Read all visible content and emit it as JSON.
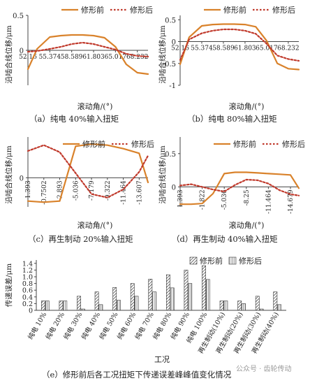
{
  "colors": {
    "before": "#d9822b",
    "after": "#c0392b",
    "axis": "#444444"
  },
  "legend": {
    "before": "修形前",
    "after": "修形后"
  },
  "captions": {
    "a": "（a）纯电 40%输入扭矩",
    "b": "（b）纯电 80%输入扭矩",
    "c": "（c）再生制动 20%输入扭矩",
    "d": "（d）再生制动 40%输入扭矩",
    "e": "（e）修形前后各工况扭矩下传递误差峰峰值变化情况"
  },
  "watermark": "公众号 · 齿轮传动",
  "chart_data": [
    {
      "id": "a",
      "type": "line",
      "ylabel": "沿啮合线位移/μm",
      "xlabel": "滚动角/(°)",
      "ylim": [
        -0.5,
        0.5
      ],
      "yticks": [
        0.5,
        0
      ],
      "xtick_labels": [
        "52.16",
        "55.374",
        "58.589",
        "61.803",
        "65.017",
        "68.232"
      ],
      "x": [
        52.16,
        53.5,
        55.374,
        57.0,
        58.589,
        60.2,
        61.803,
        63.4,
        65.017,
        66.6,
        68.232,
        69.8
      ],
      "series": [
        {
          "name": "修形前",
          "values": [
            -0.27,
            0.02,
            0.19,
            0.21,
            0.22,
            0.22,
            0.21,
            0.18,
            0.05,
            -0.2,
            -0.32,
            -0.34
          ]
        },
        {
          "name": "修形后",
          "values": [
            -0.02,
            -0.01,
            0.02,
            0.05,
            0.09,
            0.11,
            0.09,
            0.05,
            0.01,
            -0.05,
            -0.08,
            -0.09
          ]
        }
      ]
    },
    {
      "id": "b",
      "type": "line",
      "ylabel": "沿啮合线位移/μm",
      "xlabel": "滚动角/(°)",
      "ylim": [
        -1,
        0.6
      ],
      "yticks": [
        0.5,
        0,
        -0.5,
        -1
      ],
      "xtick_labels": [
        "52.16",
        "55.374",
        "58.589",
        "61.803",
        "65.017",
        "68.232"
      ],
      "x": [
        52.16,
        53.5,
        55.374,
        57.0,
        58.589,
        60.2,
        61.803,
        63.4,
        65.017,
        66.6,
        68.232,
        69.8
      ],
      "series": [
        {
          "name": "修形前",
          "values": [
            -0.52,
            0.1,
            0.36,
            0.39,
            0.4,
            0.4,
            0.39,
            0.34,
            0.02,
            -0.5,
            -0.62,
            -0.64
          ]
        },
        {
          "name": "修形后",
          "values": [
            -0.42,
            0.05,
            0.19,
            0.25,
            0.28,
            0.28,
            0.25,
            0.18,
            -0.05,
            -0.32,
            -0.4,
            -0.44
          ]
        }
      ]
    },
    {
      "id": "c",
      "type": "line",
      "ylabel": "沿啮合线位移/μm",
      "xlabel": "滚动角/(°)",
      "ylim": [
        -0.25,
        0.35
      ],
      "yticks": [
        0
      ],
      "xtick_labels": [
        "1.393",
        "-0.7502",
        "-2.893",
        "-5.036",
        "-7.179",
        "-9.322",
        "-11.464",
        "-13.607"
      ],
      "x": [
        1.393,
        -0.7502,
        -2.893,
        -5.036,
        -7.179,
        -9.322,
        -11.464,
        -13.607,
        -14.8
      ],
      "series": [
        {
          "name": "修形前",
          "values": [
            -0.2,
            -0.21,
            -0.2,
            0.27,
            0.29,
            0.28,
            0.25,
            0.21,
            -0.04
          ]
        },
        {
          "name": "修形后",
          "values": [
            0.23,
            0.28,
            0.22,
            0.04,
            -0.14,
            -0.17,
            -0.1,
            0.05,
            0.19
          ]
        }
      ]
    },
    {
      "id": "d",
      "type": "line",
      "ylabel": "沿啮合线位移/μm",
      "xlabel": "滚动角/(°)",
      "ylim": [
        -0.3,
        0.75
      ],
      "yticks": [
        0.5,
        0
      ],
      "xtick_labels": [
        "1.393",
        "-1.822",
        "-5.036",
        "-8.25",
        "-11.464",
        "-14.679"
      ],
      "x": [
        1.393,
        -0.2,
        -1.822,
        -3.4,
        -5.036,
        -6.6,
        -8.25,
        -9.9,
        -11.464,
        -13.1,
        -14.679,
        -15.9
      ],
      "series": [
        {
          "name": "修形前",
          "values": [
            -0.26,
            -0.26,
            -0.25,
            -0.1,
            0.2,
            0.22,
            0.22,
            0.21,
            0.2,
            0.19,
            0.18,
            -0.02
          ]
        },
        {
          "name": "修形后",
          "values": [
            0.02,
            0.04,
            0.0,
            -0.04,
            -0.07,
            0.03,
            0.11,
            0.1,
            0.05,
            -0.05,
            -0.11,
            -0.13
          ]
        }
      ]
    },
    {
      "id": "e",
      "type": "bar",
      "ylabel": "传递误差/μm",
      "xlabel": "工况",
      "ylim": [
        0,
        1.5
      ],
      "yticks": [
        0,
        0.2,
        0.4,
        0.6,
        0.8,
        1.0,
        1.2,
        1.4
      ],
      "ytick_labels": [
        "0",
        "0.2",
        "0.4",
        "0.6",
        "0.8",
        "1.0",
        "1.2",
        "1.4"
      ],
      "categories": [
        "纯电 10%",
        "纯电 20%",
        "纯电 30%",
        "纯电 40%",
        "纯电 50%",
        "纯电 60%",
        "纯电 70%",
        "纯电 80%",
        "纯电 90%",
        "纯电 100%",
        "再生制动(10%)",
        "再生制动(20%)",
        "再生制动(30%)",
        "再生制动(40%)"
      ],
      "series": [
        {
          "name": "修形前",
          "values": [
            0.28,
            0.28,
            0.42,
            0.55,
            0.68,
            0.8,
            0.93,
            1.06,
            1.2,
            1.33,
            0.28,
            0.28,
            0.42,
            0.55
          ]
        },
        {
          "name": "修形后",
          "values": [
            0.28,
            0.28,
            0.04,
            0.17,
            0.3,
            0.42,
            0.55,
            0.67,
            0.8,
            0.92,
            0.28,
            0.2,
            0.04,
            0.17
          ]
        }
      ]
    }
  ]
}
